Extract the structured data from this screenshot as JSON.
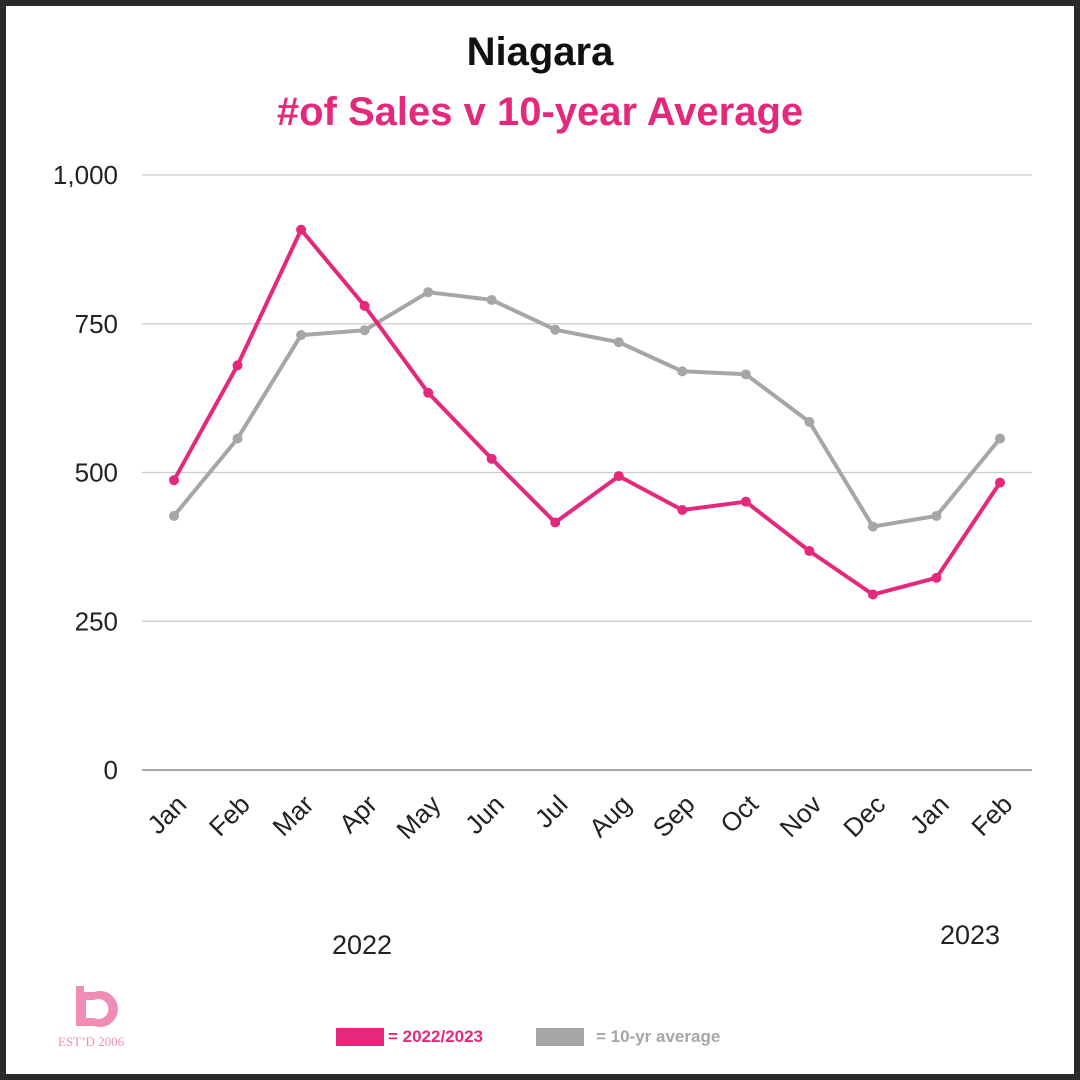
{
  "header": {
    "title": "Niagara",
    "subtitle": "#of Sales v 10-year Average"
  },
  "colors": {
    "primary": "#e4287c",
    "average": "#a6a6a6",
    "grid": "#cccccc",
    "logo": "#f08db6"
  },
  "logo": {
    "icon": "b-logo-icon",
    "text": "EST’D 2006"
  },
  "legend": {
    "primary_label": "= 2022/2023",
    "average_label": "= 10-yr average"
  },
  "year_labels": [
    "2022",
    "2023"
  ],
  "chart_data": {
    "type": "line",
    "categories": [
      "Jan",
      "Feb",
      "Mar",
      "Apr",
      "May",
      "Jun",
      "Jul",
      "Aug",
      "Sep",
      "Oct",
      "Nov",
      "Dec",
      "Jan",
      "Feb"
    ],
    "series": [
      {
        "name": "2022/2023",
        "values": [
          487,
          680,
          908,
          780,
          634,
          523,
          416,
          494,
          437,
          451,
          368,
          295,
          323,
          483
        ]
      },
      {
        "name": "10-yr average",
        "values": [
          427,
          557,
          731,
          739,
          803,
          790,
          740,
          719,
          670,
          665,
          585,
          409,
          427,
          557
        ]
      }
    ],
    "title": "Niagara",
    "subtitle": "#of Sales v 10-year Average",
    "ylim": [
      0,
      1000
    ],
    "yticks": [
      0,
      250,
      500,
      750,
      1000
    ],
    "ytick_labels": [
      "0",
      "250",
      "500",
      "750",
      "1,000"
    ],
    "grid": true,
    "legend_position": "bottom"
  }
}
